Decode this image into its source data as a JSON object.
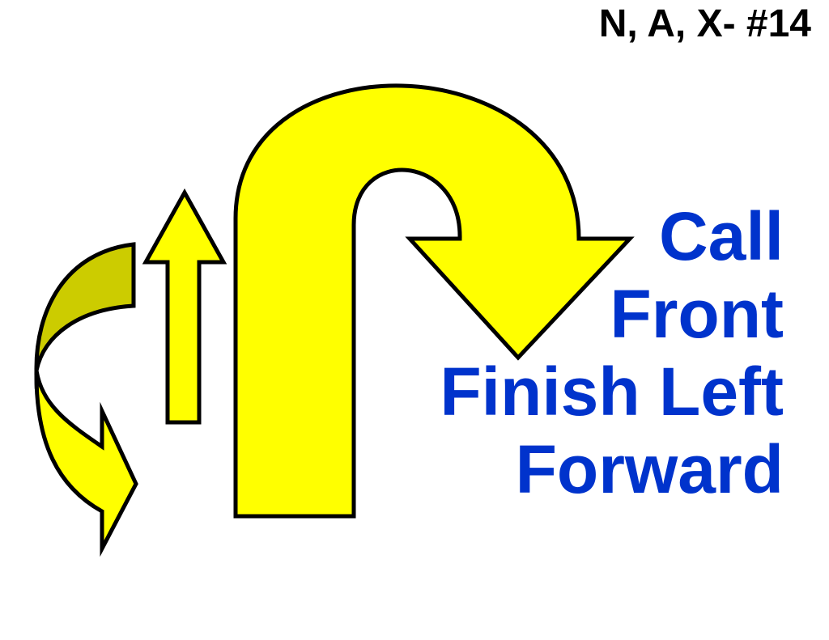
{
  "title": "N, A, X- #14",
  "instruction": {
    "lines": [
      "Call",
      "Front",
      "Finish Left",
      "Forward"
    ]
  },
  "colors": {
    "arrow_fill": "#FFFF00",
    "arrow_shade": "#CCCC00",
    "outline": "#000000",
    "instruction_text": "#0033CC",
    "title_text": "#000000"
  },
  "icons": [
    "curved-arrow-icon",
    "up-arrow-icon",
    "u-turn-arrow-icon"
  ]
}
